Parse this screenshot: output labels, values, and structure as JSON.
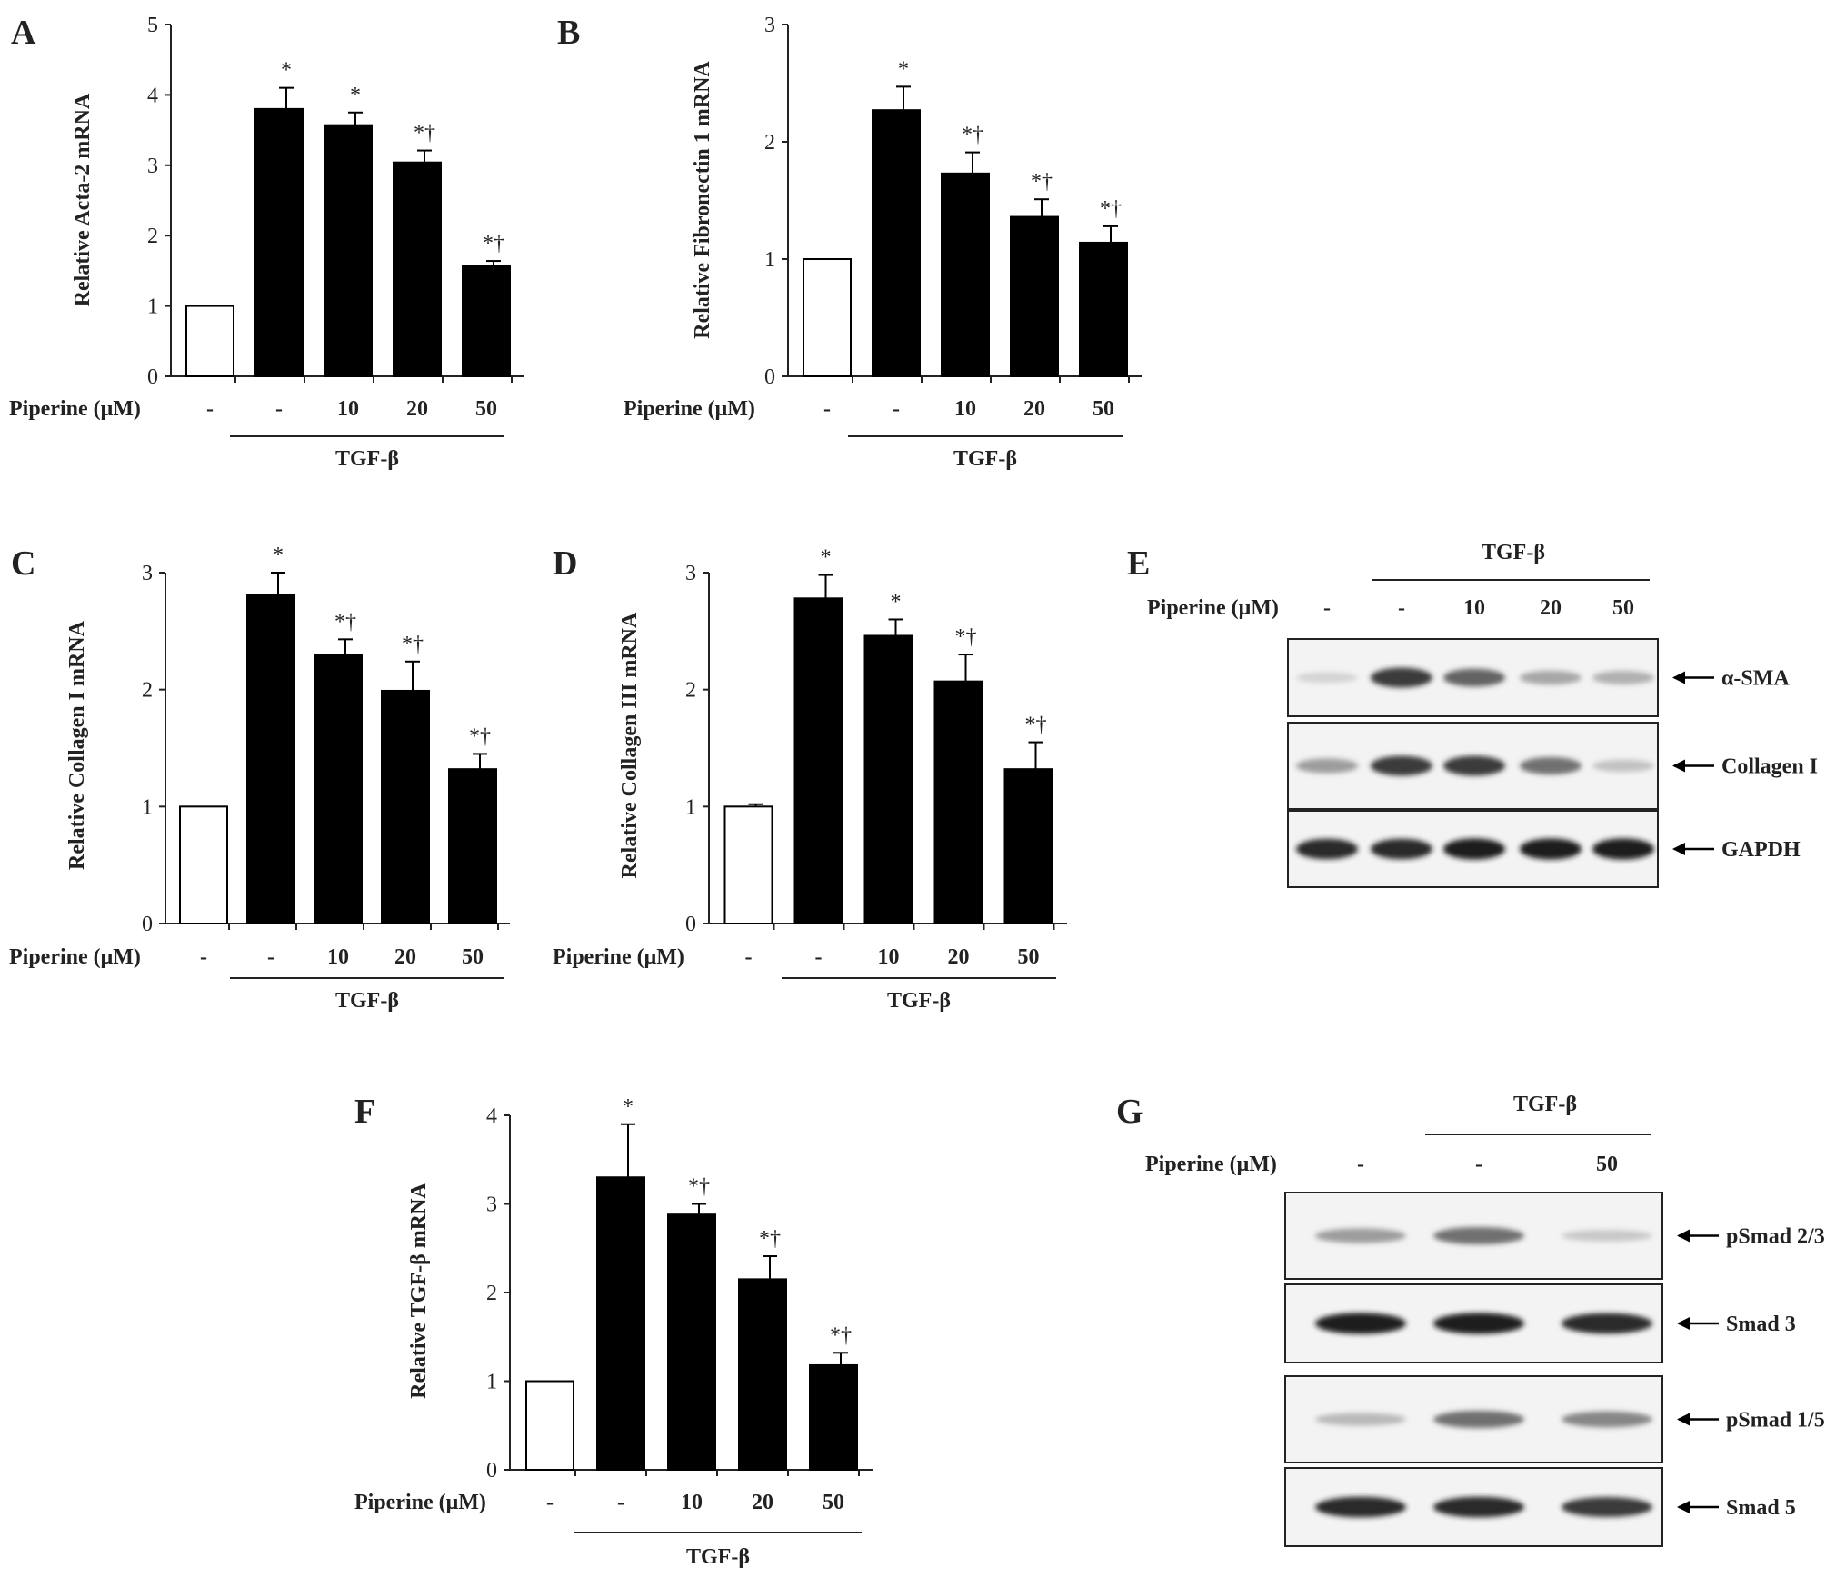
{
  "figure": {
    "condition_label": "Piperine (μM)",
    "treatment_label": "TGF-β"
  },
  "chart_data": [
    {
      "panel": "A",
      "type": "bar",
      "ylabel": "Relative Acta-2  mRNA",
      "ylim": [
        0,
        5
      ],
      "yticks": [
        0,
        1,
        2,
        3,
        4,
        5
      ],
      "categories": [
        "-",
        "-",
        "10",
        "20",
        "50"
      ],
      "values": [
        1.0,
        3.8,
        3.57,
        3.04,
        1.57
      ],
      "errors": [
        0,
        0.3,
        0.18,
        0.17,
        0.07
      ],
      "significance": [
        "",
        "*",
        "*",
        "*†",
        "*†"
      ],
      "treatment_group": "TGF-β"
    },
    {
      "panel": "B",
      "type": "bar",
      "ylabel": "Relative Fibronectin 1  mRNA",
      "ylim": [
        0,
        3
      ],
      "yticks": [
        0,
        1,
        2,
        3
      ],
      "categories": [
        "-",
        "-",
        "10",
        "20",
        "50"
      ],
      "values": [
        1.0,
        2.27,
        1.73,
        1.36,
        1.14
      ],
      "errors": [
        0,
        0.2,
        0.18,
        0.15,
        0.14
      ],
      "significance": [
        "",
        "*",
        "*†",
        "*†",
        "*†"
      ],
      "treatment_group": "TGF-β"
    },
    {
      "panel": "C",
      "type": "bar",
      "ylabel": "Relative Collagen I  mRNA",
      "ylim": [
        0,
        3
      ],
      "yticks": [
        0,
        1,
        2,
        3
      ],
      "categories": [
        "-",
        "-",
        "10",
        "20",
        "50"
      ],
      "values": [
        1.0,
        2.81,
        2.3,
        1.99,
        1.32
      ],
      "errors": [
        0,
        0.19,
        0.13,
        0.25,
        0.13
      ],
      "significance": [
        "",
        "*",
        "*†",
        "*†",
        "*†"
      ],
      "treatment_group": "TGF-β"
    },
    {
      "panel": "D",
      "type": "bar",
      "ylabel": "Relative Collagen III  mRNA",
      "ylim": [
        0,
        3
      ],
      "yticks": [
        0,
        1,
        2,
        3
      ],
      "categories": [
        "-",
        "-",
        "10",
        "20",
        "50"
      ],
      "values": [
        1.0,
        2.78,
        2.46,
        2.07,
        1.32
      ],
      "errors": [
        0.02,
        0.2,
        0.14,
        0.23,
        0.23
      ],
      "significance": [
        "",
        "*",
        "*",
        "*†",
        "*†"
      ],
      "treatment_group": "TGF-β"
    },
    {
      "panel": "F",
      "type": "bar",
      "ylabel": "Relative  TGF-β mRNA",
      "ylim": [
        0,
        4
      ],
      "yticks": [
        0,
        1,
        2,
        3,
        4
      ],
      "categories": [
        "-",
        "-",
        "10",
        "20",
        "50"
      ],
      "values": [
        1.0,
        3.3,
        2.88,
        2.15,
        1.18
      ],
      "errors": [
        0,
        0.6,
        0.12,
        0.26,
        0.14
      ],
      "significance": [
        "",
        "*",
        "*†",
        "*†",
        "*†"
      ],
      "treatment_group": "TGF-β"
    }
  ],
  "blots": [
    {
      "panel": "E",
      "treatment_label": "TGF-β",
      "lanes": [
        "-",
        "-",
        "10",
        "20",
        "50"
      ],
      "rows": [
        {
          "label": "α-SMA",
          "intensities": [
            0.12,
            0.85,
            0.7,
            0.4,
            0.35
          ]
        },
        {
          "label": "Collagen I",
          "intensities": [
            0.45,
            0.85,
            0.85,
            0.65,
            0.25
          ]
        },
        {
          "label": "GAPDH",
          "intensities": [
            0.9,
            0.9,
            0.95,
            0.95,
            0.95
          ]
        }
      ]
    },
    {
      "panel": "G",
      "treatment_label": "TGF-β",
      "lanes": [
        "-",
        "-",
        "50"
      ],
      "rows": [
        {
          "label": "pSmad 2/3",
          "intensities": [
            0.45,
            0.65,
            0.2
          ]
        },
        {
          "label": "Smad 3",
          "intensities": [
            0.95,
            0.95,
            0.9
          ]
        },
        {
          "label": "pSmad 1/5",
          "intensities": [
            0.3,
            0.65,
            0.55
          ]
        },
        {
          "label": "Smad 5",
          "intensities": [
            0.9,
            0.9,
            0.85
          ]
        }
      ]
    }
  ]
}
